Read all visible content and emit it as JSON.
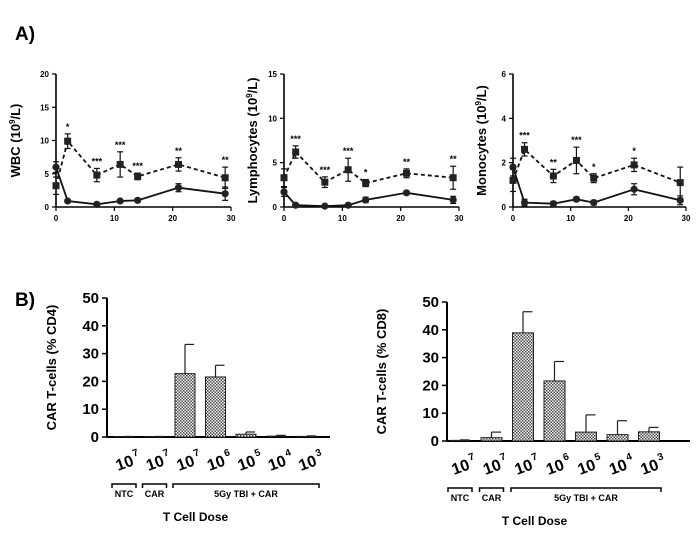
{
  "panel_labels": {
    "a": "A)",
    "b": "B)"
  },
  "chart_data": [
    {
      "type": "line",
      "panel": "A",
      "ylabel_base": "WBC (10",
      "ylabel_sup": "9",
      "ylabel_tail": "/L)",
      "xlim": [
        0,
        30
      ],
      "ylim": [
        0,
        20
      ],
      "xticks": [
        0,
        10,
        20,
        30
      ],
      "yticks": [
        0,
        5,
        10,
        15,
        20
      ],
      "series": [
        {
          "style": "dashed-square",
          "x": [
            0,
            2,
            7,
            11,
            14,
            21,
            29
          ],
          "y": [
            3.2,
            9.9,
            4.8,
            6.4,
            4.6,
            6.4,
            4.4
          ],
          "err": [
            1.3,
            1.1,
            1.0,
            1.9,
            0.5,
            1.0,
            1.6
          ]
        },
        {
          "style": "solid-circle",
          "x": [
            0,
            2,
            7,
            11,
            14,
            21,
            29
          ],
          "y": [
            6.0,
            0.9,
            0.4,
            0.9,
            1.0,
            2.9,
            2.0
          ],
          "err": [
            0.8,
            0.2,
            0.1,
            0.2,
            0.2,
            0.6,
            1.0
          ]
        }
      ],
      "significance": [
        {
          "x": 2,
          "label": "*"
        },
        {
          "x": 7,
          "label": "***"
        },
        {
          "x": 11,
          "label": "***"
        },
        {
          "x": 14,
          "label": "***"
        },
        {
          "x": 21,
          "label": "**"
        },
        {
          "x": 29,
          "label": "**"
        }
      ]
    },
    {
      "type": "line",
      "panel": "A",
      "ylabel_base": "Lymphocytes (10",
      "ylabel_sup": "9",
      "ylabel_tail": "/L)",
      "xlim": [
        0,
        30
      ],
      "ylim": [
        0,
        15
      ],
      "xticks": [
        0,
        10,
        20,
        30
      ],
      "yticks": [
        0,
        5,
        10,
        15
      ],
      "series": [
        {
          "style": "dashed-square",
          "x": [
            0,
            2,
            7,
            11,
            14,
            21,
            29
          ],
          "y": [
            3.3,
            6.2,
            2.8,
            4.2,
            2.7,
            3.8,
            3.3
          ],
          "err": [
            1.0,
            0.7,
            0.6,
            1.3,
            0.4,
            0.5,
            1.3
          ]
        },
        {
          "style": "solid-circle",
          "x": [
            0,
            2,
            7,
            11,
            14,
            21,
            29
          ],
          "y": [
            1.7,
            0.2,
            0.1,
            0.2,
            0.8,
            1.6,
            0.8
          ],
          "err": [
            0.5,
            0.1,
            0.05,
            0.1,
            0.3,
            0.2,
            0.4
          ]
        }
      ],
      "significance": [
        {
          "x": 2,
          "label": "***"
        },
        {
          "x": 7,
          "label": "***"
        },
        {
          "x": 11,
          "label": "***"
        },
        {
          "x": 14,
          "label": "*"
        },
        {
          "x": 21,
          "label": "**"
        },
        {
          "x": 29,
          "label": "**"
        }
      ]
    },
    {
      "type": "line",
      "panel": "A",
      "ylabel_base": "Monocytes (10",
      "ylabel_sup": "9",
      "ylabel_tail": "/L)",
      "xlim": [
        0,
        30
      ],
      "ylim": [
        0,
        6
      ],
      "xticks": [
        0,
        10,
        20,
        30
      ],
      "yticks": [
        0,
        2,
        4,
        6
      ],
      "series": [
        {
          "style": "dashed-square",
          "x": [
            0,
            2,
            7,
            11,
            14,
            21,
            29
          ],
          "y": [
            1.2,
            2.6,
            1.4,
            2.1,
            1.3,
            1.9,
            1.1
          ],
          "err": [
            0.5,
            0.3,
            0.3,
            0.6,
            0.2,
            0.3,
            0.7
          ]
        },
        {
          "style": "solid-circle",
          "x": [
            0,
            2,
            7,
            11,
            14,
            21,
            29
          ],
          "y": [
            1.8,
            0.2,
            0.15,
            0.35,
            0.2,
            0.8,
            0.3
          ],
          "err": [
            0.4,
            0.15,
            0.1,
            0.1,
            0.1,
            0.25,
            0.2
          ]
        }
      ],
      "significance": [
        {
          "x": 2,
          "label": "***"
        },
        {
          "x": 7,
          "label": "**"
        },
        {
          "x": 11,
          "label": "***"
        },
        {
          "x": 14,
          "label": "*"
        },
        {
          "x": 21,
          "label": "*"
        }
      ]
    },
    {
      "type": "bar",
      "panel": "B",
      "ylabel": "CAR T-cells (% CD4)",
      "xlabel": "T Cell Dose",
      "ylim": [
        0,
        50
      ],
      "yticks": [
        0,
        10,
        20,
        30,
        40,
        50
      ],
      "categories": [
        {
          "base": "10",
          "exp": "7"
        },
        {
          "base": "10",
          "exp": "7"
        },
        {
          "base": "10",
          "exp": "7"
        },
        {
          "base": "10",
          "exp": "6"
        },
        {
          "base": "10",
          "exp": "5"
        },
        {
          "base": "10",
          "exp": "4"
        },
        {
          "base": "10",
          "exp": "3"
        }
      ],
      "values": [
        0.1,
        0.1,
        22.8,
        21.6,
        1.0,
        0.3,
        0.2
      ],
      "err": [
        0.1,
        0.1,
        10.5,
        4.2,
        0.8,
        0.3,
        0.2
      ],
      "groups": [
        {
          "label": "NTC",
          "from": 0,
          "to": 0
        },
        {
          "label": "CAR",
          "from": 1,
          "to": 1
        },
        {
          "label": "5Gy TBI + CAR",
          "from": 2,
          "to": 6
        }
      ]
    },
    {
      "type": "bar",
      "panel": "B",
      "ylabel": "CAR T-cells (% CD8)",
      "xlabel": "T Cell Dose",
      "ylim": [
        0,
        50
      ],
      "yticks": [
        0,
        10,
        20,
        30,
        40,
        50
      ],
      "categories": [
        {
          "base": "10",
          "exp": "7"
        },
        {
          "base": "10",
          "exp": "7"
        },
        {
          "base": "10",
          "exp": "7"
        },
        {
          "base": "10",
          "exp": "6"
        },
        {
          "base": "10",
          "exp": "5"
        },
        {
          "base": "10",
          "exp": "4"
        },
        {
          "base": "10",
          "exp": "3"
        }
      ],
      "values": [
        0.2,
        1.2,
        38.9,
        21.6,
        3.2,
        2.3,
        3.3
      ],
      "err": [
        0.2,
        2.0,
        7.6,
        7.0,
        6.2,
        5.0,
        1.6
      ],
      "groups": [
        {
          "label": "NTC",
          "from": 0,
          "to": 0
        },
        {
          "label": "CAR",
          "from": 1,
          "to": 1
        },
        {
          "label": "5Gy TBI + CAR",
          "from": 2,
          "to": 6
        }
      ]
    }
  ]
}
